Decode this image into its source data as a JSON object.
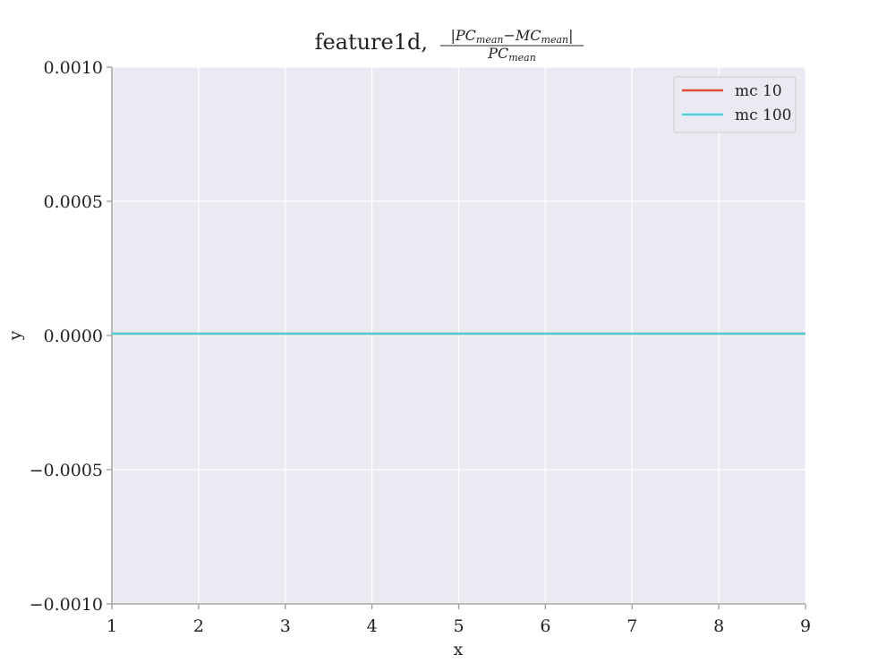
{
  "chart_data": {
    "type": "line",
    "title": {
      "prefix": "feature1d,",
      "numerator": "|PC",
      "numerator_sub": "mean",
      "numerator_mid": "−MC",
      "numerator_sub2": "mean",
      "numerator_end": "|",
      "denominator": "PC",
      "denominator_sub": "mean"
    },
    "xlabel": "x",
    "ylabel": "y",
    "xlim": [
      1,
      9
    ],
    "ylim": [
      -0.001,
      0.001
    ],
    "x_ticks": [
      1,
      2,
      3,
      4,
      5,
      6,
      7,
      8,
      9
    ],
    "x_tick_labels": [
      "1",
      "2",
      "3",
      "4",
      "5",
      "6",
      "7",
      "8",
      "9"
    ],
    "y_ticks": [
      -0.001,
      -0.0005,
      0,
      0.0005,
      0.001
    ],
    "y_tick_labels": [
      "−0.0010",
      "−0.0005",
      "0.0000",
      "0.0005",
      "0.0010"
    ],
    "grid": true,
    "legend_position": "top-right",
    "series": [
      {
        "name": "mc 10",
        "color": "#e24a33",
        "x": [
          1,
          2,
          3,
          4,
          5,
          6,
          7,
          8,
          9
        ],
        "y": [
          0,
          0,
          0,
          0,
          0,
          0,
          0,
          0,
          0
        ]
      },
      {
        "name": "mc 100",
        "color": "#4fcfd8",
        "x": [
          1,
          2,
          3,
          4,
          5,
          6,
          7,
          8,
          9
        ],
        "y": [
          0,
          0,
          0,
          0,
          0,
          0,
          0,
          0,
          0
        ]
      }
    ],
    "colors": {
      "plot_background": "#eaeaf2",
      "grid": "#ffffff",
      "axis": "#999999",
      "legend_border": "#cccccc"
    }
  }
}
